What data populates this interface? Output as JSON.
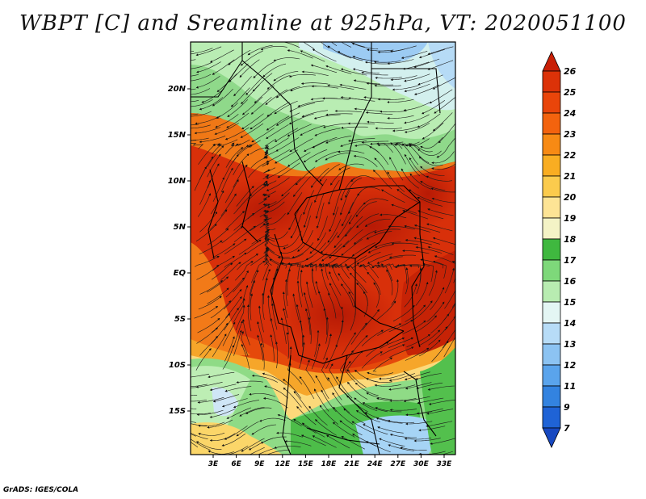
{
  "title": "WBPT [C] and Sreamline at 925hPa, VT: 2020051100",
  "credit": "GrADS: IGES/COLA",
  "map": {
    "description_name": "africa-wbpt-map",
    "lat_labels": [
      "20N",
      "15N",
      "10N",
      "5N",
      "EQ",
      "5S",
      "10S",
      "15S"
    ],
    "lon_labels": [
      "3E",
      "6E",
      "9E",
      "12E",
      "15E",
      "18E",
      "21E",
      "24E",
      "27E",
      "30E",
      "33E"
    ]
  },
  "colorbar": {
    "levels": [
      "26",
      "25",
      "24",
      "23",
      "22",
      "21",
      "20",
      "19",
      "18",
      "17",
      "16",
      "15",
      "14",
      "13",
      "12",
      "11",
      "9",
      "7"
    ],
    "colors": [
      "#c81f06",
      "#dc3208",
      "#e9450a",
      "#f3630e",
      "#f78a14",
      "#f9ad22",
      "#fbcb4d",
      "#fde495",
      "#f4f3c6",
      "#3fb83f",
      "#7ed87a",
      "#b8ecb1",
      "#e4f6f4",
      "#b7dcf7",
      "#8cc3f2",
      "#5aa4ec",
      "#3383e0",
      "#1f63d6",
      "#1748c0"
    ]
  }
}
